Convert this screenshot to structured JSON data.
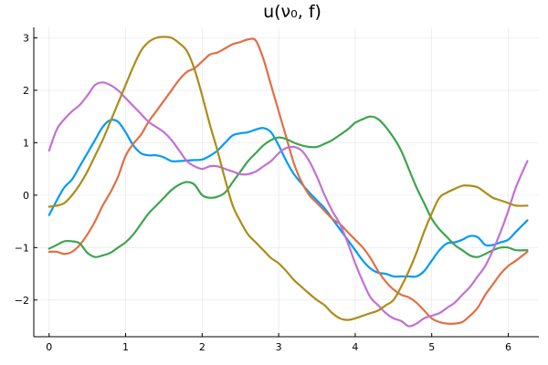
{
  "chart_data": {
    "type": "line",
    "title": "u(ν₀, f)",
    "xlabel": "",
    "ylabel": "",
    "xlim": [
      -0.2,
      6.4
    ],
    "ylim": [
      -2.7,
      3.2
    ],
    "xticks": [
      0,
      1,
      2,
      3,
      4,
      5,
      6
    ],
    "yticks": [
      -2,
      -1,
      0,
      1,
      2,
      3
    ],
    "xtick_labels": [
      "0",
      "1",
      "2",
      "3",
      "4",
      "5",
      "6"
    ],
    "ytick_labels": [
      "−2",
      "−1",
      "0",
      "1",
      "2",
      "3"
    ],
    "grid": true,
    "legend": false,
    "series": [
      {
        "color": "#009af9",
        "x": [
          0,
          0.1,
          0.2,
          0.3,
          0.4,
          0.5,
          0.6,
          0.7,
          0.8,
          0.9,
          1.0,
          1.1,
          1.2,
          1.3,
          1.4,
          1.5,
          1.6,
          1.7,
          1.8,
          1.9,
          2.0,
          2.1,
          2.2,
          2.3,
          2.4,
          2.5,
          2.6,
          2.7,
          2.8,
          2.9,
          3.0,
          3.1,
          3.2,
          3.3,
          3.4,
          3.5,
          3.6,
          3.7,
          3.8,
          3.9,
          4.0,
          4.1,
          4.2,
          4.3,
          4.4,
          4.5,
          4.6,
          4.7,
          4.8,
          4.9,
          5.0,
          5.1,
          5.2,
          5.3,
          5.4,
          5.5,
          5.6,
          5.7,
          5.8,
          5.9,
          6.0,
          6.1,
          6.25
        ],
        "y": [
          -0.38,
          -0.1,
          0.15,
          0.3,
          0.55,
          0.8,
          1.05,
          1.3,
          1.43,
          1.4,
          1.2,
          0.95,
          0.8,
          0.76,
          0.76,
          0.72,
          0.65,
          0.65,
          0.66,
          0.67,
          0.68,
          0.75,
          0.85,
          1.0,
          1.14,
          1.18,
          1.2,
          1.25,
          1.28,
          1.2,
          0.95,
          0.65,
          0.4,
          0.22,
          0.05,
          -0.1,
          -0.25,
          -0.45,
          -0.65,
          -0.85,
          -1.05,
          -1.25,
          -1.4,
          -1.48,
          -1.5,
          -1.55,
          -1.55,
          -1.55,
          -1.55,
          -1.45,
          -1.25,
          -1.05,
          -0.92,
          -0.9,
          -0.85,
          -0.78,
          -0.8,
          -0.95,
          -0.95,
          -0.9,
          -0.85,
          -0.7,
          -0.48
        ]
      },
      {
        "color": "#e26f46",
        "x": [
          0,
          0.1,
          0.2,
          0.3,
          0.4,
          0.5,
          0.6,
          0.7,
          0.8,
          0.9,
          1.0,
          1.1,
          1.2,
          1.3,
          1.4,
          1.5,
          1.6,
          1.7,
          1.8,
          1.9,
          2.0,
          2.1,
          2.2,
          2.3,
          2.4,
          2.5,
          2.6,
          2.7,
          2.8,
          2.9,
          3.0,
          3.1,
          3.2,
          3.3,
          3.4,
          3.5,
          3.6,
          3.7,
          3.8,
          3.9,
          4.0,
          4.1,
          4.2,
          4.3,
          4.4,
          4.5,
          4.6,
          4.7,
          4.8,
          4.9,
          5.0,
          5.1,
          5.2,
          5.3,
          5.4,
          5.5,
          5.6,
          5.7,
          5.8,
          5.9,
          6.0,
          6.1,
          6.25
        ],
        "y": [
          -1.08,
          -1.08,
          -1.12,
          -1.08,
          -0.95,
          -0.75,
          -0.5,
          -0.2,
          0.05,
          0.35,
          0.75,
          0.98,
          1.15,
          1.4,
          1.6,
          1.8,
          2.0,
          2.2,
          2.35,
          2.42,
          2.55,
          2.68,
          2.72,
          2.8,
          2.88,
          2.92,
          2.97,
          2.95,
          2.6,
          2.1,
          1.6,
          1.1,
          0.6,
          0.25,
          0.0,
          -0.15,
          -0.3,
          -0.45,
          -0.55,
          -0.7,
          -0.85,
          -1.0,
          -1.2,
          -1.45,
          -1.65,
          -1.8,
          -1.9,
          -1.95,
          -2.05,
          -2.2,
          -2.35,
          -2.42,
          -2.45,
          -2.45,
          -2.42,
          -2.3,
          -2.15,
          -1.9,
          -1.7,
          -1.5,
          -1.35,
          -1.25,
          -1.08
        ]
      },
      {
        "color": "#3ea44e",
        "x": [
          0,
          0.1,
          0.2,
          0.3,
          0.4,
          0.5,
          0.6,
          0.7,
          0.8,
          0.9,
          1.0,
          1.1,
          1.2,
          1.3,
          1.4,
          1.5,
          1.6,
          1.7,
          1.8,
          1.9,
          2.0,
          2.1,
          2.2,
          2.3,
          2.4,
          2.5,
          2.6,
          2.7,
          2.8,
          2.9,
          3.0,
          3.1,
          3.2,
          3.3,
          3.4,
          3.5,
          3.6,
          3.7,
          3.8,
          3.9,
          4.0,
          4.1,
          4.2,
          4.3,
          4.4,
          4.5,
          4.6,
          4.7,
          4.8,
          4.9,
          5.0,
          5.1,
          5.2,
          5.3,
          5.4,
          5.5,
          5.6,
          5.7,
          5.8,
          5.9,
          6.0,
          6.1,
          6.25
        ],
        "y": [
          -1.02,
          -0.95,
          -0.88,
          -0.88,
          -0.92,
          -1.1,
          -1.18,
          -1.15,
          -1.1,
          -1.0,
          -0.9,
          -0.75,
          -0.55,
          -0.35,
          -0.2,
          -0.05,
          0.1,
          0.2,
          0.25,
          0.2,
          0.0,
          -0.05,
          -0.03,
          0.05,
          0.25,
          0.45,
          0.65,
          0.8,
          0.95,
          1.05,
          1.1,
          1.07,
          1.0,
          0.95,
          0.92,
          0.92,
          0.98,
          1.05,
          1.15,
          1.25,
          1.38,
          1.45,
          1.5,
          1.45,
          1.3,
          1.1,
          0.85,
          0.5,
          0.15,
          -0.15,
          -0.45,
          -0.65,
          -0.8,
          -0.95,
          -1.05,
          -1.15,
          -1.18,
          -1.12,
          -1.05,
          -1.0,
          -1.0,
          -1.05,
          -1.05
        ]
      },
      {
        "color": "#c271d2",
        "x": [
          0,
          0.1,
          0.2,
          0.3,
          0.4,
          0.5,
          0.6,
          0.7,
          0.8,
          0.9,
          1.0,
          1.1,
          1.2,
          1.3,
          1.4,
          1.5,
          1.6,
          1.7,
          1.8,
          1.9,
          2.0,
          2.1,
          2.2,
          2.3,
          2.4,
          2.5,
          2.6,
          2.7,
          2.8,
          2.9,
          3.0,
          3.1,
          3.2,
          3.3,
          3.4,
          3.5,
          3.6,
          3.7,
          3.8,
          3.9,
          4.0,
          4.1,
          4.2,
          4.3,
          4.4,
          4.5,
          4.6,
          4.7,
          4.8,
          4.9,
          5.0,
          5.1,
          5.2,
          5.3,
          5.4,
          5.5,
          5.6,
          5.7,
          5.8,
          5.9,
          6.0,
          6.1,
          6.25
        ],
        "y": [
          0.85,
          1.25,
          1.45,
          1.6,
          1.72,
          1.9,
          2.1,
          2.15,
          2.1,
          2.0,
          1.85,
          1.7,
          1.55,
          1.4,
          1.3,
          1.2,
          1.05,
          0.85,
          0.65,
          0.55,
          0.5,
          0.55,
          0.55,
          0.5,
          0.45,
          0.4,
          0.4,
          0.45,
          0.55,
          0.65,
          0.8,
          0.9,
          0.92,
          0.85,
          0.65,
          0.35,
          0.0,
          -0.3,
          -0.55,
          -0.9,
          -1.3,
          -1.65,
          -1.95,
          -2.1,
          -2.25,
          -2.35,
          -2.4,
          -2.5,
          -2.45,
          -2.35,
          -2.3,
          -2.25,
          -2.15,
          -2.05,
          -1.9,
          -1.75,
          -1.55,
          -1.35,
          -1.05,
          -0.7,
          -0.3,
          0.15,
          0.65
        ]
      },
      {
        "color": "#ac8d18",
        "x": [
          0,
          0.1,
          0.2,
          0.3,
          0.4,
          0.5,
          0.6,
          0.7,
          0.8,
          0.9,
          1.0,
          1.1,
          1.2,
          1.3,
          1.4,
          1.5,
          1.6,
          1.7,
          1.8,
          1.9,
          2.0,
          2.1,
          2.2,
          2.3,
          2.4,
          2.5,
          2.6,
          2.7,
          2.8,
          2.9,
          3.0,
          3.1,
          3.2,
          3.3,
          3.4,
          3.5,
          3.6,
          3.7,
          3.8,
          3.9,
          4.0,
          4.1,
          4.2,
          4.3,
          4.4,
          4.5,
          4.6,
          4.7,
          4.8,
          4.9,
          5.0,
          5.1,
          5.2,
          5.3,
          5.4,
          5.5,
          5.6,
          5.7,
          5.8,
          5.9,
          6.0,
          6.1,
          6.25
        ],
        "y": [
          -0.22,
          -0.2,
          -0.15,
          0.0,
          0.2,
          0.45,
          0.75,
          1.05,
          1.4,
          1.75,
          2.1,
          2.45,
          2.75,
          2.92,
          3.0,
          3.02,
          3.0,
          2.9,
          2.75,
          2.4,
          1.9,
          1.35,
          0.85,
          0.3,
          -0.2,
          -0.5,
          -0.75,
          -0.9,
          -1.05,
          -1.2,
          -1.3,
          -1.45,
          -1.62,
          -1.75,
          -1.88,
          -2.0,
          -2.1,
          -2.25,
          -2.35,
          -2.38,
          -2.35,
          -2.3,
          -2.25,
          -2.2,
          -2.1,
          -2.0,
          -1.75,
          -1.45,
          -1.1,
          -0.7,
          -0.35,
          -0.05,
          0.05,
          0.12,
          0.18,
          0.18,
          0.15,
          0.05,
          -0.05,
          -0.1,
          -0.15,
          -0.2,
          -0.2
        ]
      }
    ]
  }
}
